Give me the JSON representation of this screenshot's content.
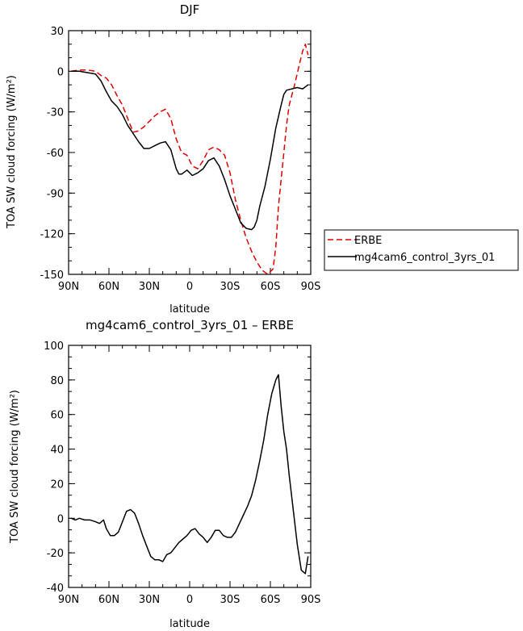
{
  "chart_data": [
    {
      "type": "line",
      "title": "DJF",
      "xlabel": "latitude",
      "ylabel": "TOA SW cloud forcing (W/m²)",
      "x_ticks": [
        {
          "x": 90,
          "label": "90N"
        },
        {
          "x": 60,
          "label": "60N"
        },
        {
          "x": 30,
          "label": "30N"
        },
        {
          "x": 0,
          "label": "0"
        },
        {
          "x": -30,
          "label": "30S"
        },
        {
          "x": -60,
          "label": "60S"
        },
        {
          "x": -90,
          "label": "90S"
        }
      ],
      "xlim": [
        90,
        -90
      ],
      "ylim": [
        -150,
        30
      ],
      "y_ticks": [
        30,
        0,
        -30,
        -60,
        -90,
        -120,
        -150
      ],
      "legend_placement": "right-outside",
      "series": [
        {
          "name": "ERBE",
          "color": "#e00000",
          "dash": "dashed",
          "x": [
            88,
            82,
            76,
            70,
            66,
            62,
            58,
            54,
            50,
            46,
            42,
            38,
            34,
            30,
            26,
            22,
            18,
            14,
            10,
            6,
            2,
            -2,
            -6,
            -10,
            -14,
            -18,
            -22,
            -26,
            -30,
            -34,
            -38,
            -42,
            -46,
            -50,
            -54,
            -58,
            -62,
            -64,
            -66,
            -68,
            -70,
            -72,
            -74,
            -78,
            -82,
            -84,
            -86,
            -88
          ],
          "y": [
            0,
            1,
            1,
            0,
            -3,
            -5,
            -10,
            -18,
            -25,
            -35,
            -45,
            -44,
            -41,
            -37,
            -33,
            -30,
            -28,
            -35,
            -50,
            -60,
            -62,
            -70,
            -72,
            -66,
            -58,
            -56,
            -58,
            -62,
            -75,
            -95,
            -110,
            -123,
            -133,
            -141,
            -147,
            -150,
            -146,
            -130,
            -100,
            -80,
            -60,
            -40,
            -25,
            -10,
            7,
            15,
            20,
            12
          ]
        },
        {
          "name": "mg4cam6_control_3yrs_01",
          "color": "#000000",
          "dash": "solid",
          "x": [
            88,
            82,
            76,
            70,
            66,
            62,
            58,
            54,
            50,
            46,
            42,
            38,
            34,
            30,
            26,
            22,
            18,
            14,
            12,
            10,
            8,
            6,
            2,
            -2,
            -6,
            -10,
            -14,
            -18,
            -22,
            -26,
            -30,
            -34,
            -38,
            -42,
            -46,
            -48,
            -50,
            -52,
            -56,
            -60,
            -64,
            -68,
            -70,
            -72,
            -76,
            -80,
            -84,
            -88
          ],
          "y": [
            0,
            0,
            -1,
            -2,
            -7,
            -15,
            -22,
            -26,
            -32,
            -40,
            -46,
            -52,
            -57,
            -57,
            -55,
            -53,
            -52,
            -58,
            -65,
            -72,
            -76,
            -76,
            -73,
            -77,
            -75,
            -72,
            -66,
            -64,
            -70,
            -80,
            -92,
            -102,
            -112,
            -116,
            -117,
            -115,
            -110,
            -100,
            -85,
            -65,
            -42,
            -25,
            -17,
            -14,
            -13,
            -12,
            -13,
            -10
          ]
        }
      ]
    },
    {
      "type": "line",
      "title": "mg4cam6_control_3yrs_01 – ERBE",
      "xlabel": "latitude",
      "ylabel": "TOA SW cloud forcing (W/m²)",
      "x_ticks": [
        {
          "x": 90,
          "label": "90N"
        },
        {
          "x": 60,
          "label": "60N"
        },
        {
          "x": 30,
          "label": "30N"
        },
        {
          "x": 0,
          "label": "0"
        },
        {
          "x": -30,
          "label": "30S"
        },
        {
          "x": -60,
          "label": "60S"
        },
        {
          "x": -90,
          "label": "90S"
        }
      ],
      "xlim": [
        90,
        -90
      ],
      "ylim": [
        -40,
        100
      ],
      "y_ticks": [
        100,
        80,
        60,
        40,
        20,
        0,
        -20,
        -40
      ],
      "series": [
        {
          "color": "#000000",
          "dash": "solid",
          "x": [
            88,
            85,
            82,
            78,
            74,
            70,
            67,
            64,
            62,
            59,
            56,
            53,
            50,
            47,
            44,
            41,
            38,
            35,
            32,
            29,
            26,
            23,
            20,
            17,
            14,
            11,
            8,
            5,
            2,
            -1,
            -4,
            -7,
            -10,
            -13,
            -16,
            -19,
            -22,
            -25,
            -28,
            -31,
            -34,
            -37,
            -40,
            -43,
            -46,
            -49,
            -52,
            -55,
            -58,
            -61,
            -64,
            -66,
            -68,
            -70,
            -72,
            -74,
            -77,
            -80,
            -83,
            -86,
            -88
          ],
          "y": [
            0,
            -1,
            0,
            -1,
            -1,
            -2,
            -3,
            -1,
            -6,
            -10,
            -10,
            -8,
            -2,
            4,
            5,
            3,
            -3,
            -10,
            -16,
            -22,
            -24,
            -24,
            -25,
            -21,
            -20,
            -17,
            -14,
            -12,
            -10,
            -7,
            -6,
            -9,
            -11,
            -14,
            -11,
            -7,
            -7,
            -10,
            -11,
            -11,
            -8,
            -3,
            2,
            7,
            13,
            22,
            33,
            45,
            60,
            72,
            80,
            83,
            65,
            50,
            40,
            25,
            5,
            -15,
            -30,
            -32,
            -22
          ]
        }
      ]
    }
  ]
}
